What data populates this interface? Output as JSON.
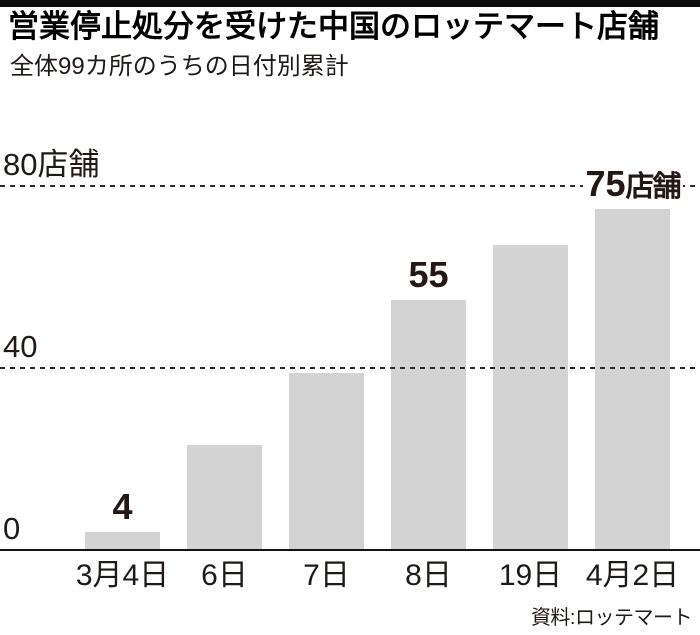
{
  "header": {
    "title": "営業停止処分を受けた中国のロッテマート店舗",
    "subtitle": "全体99カ所のうちの日付別累計"
  },
  "source": "資料:ロッテマート",
  "colors": {
    "bar": "#d3d3d4",
    "text": "#1f1a17",
    "accent_band": "#0d0d0d",
    "gridline": "#2e2a28"
  },
  "chart_data": {
    "type": "bar",
    "title": "営業停止処分を受けた中国のロッテマート店舗",
    "subtitle": "全体99カ所のうちの日付別累計",
    "unit": "店舗",
    "categories": [
      "3月4日",
      "6日",
      "7日",
      "8日",
      "19日",
      "4月2日"
    ],
    "values": [
      4,
      23,
      39,
      55,
      67,
      75
    ],
    "value_labels": [
      {
        "index": 0,
        "text": "4",
        "suffix": ""
      },
      {
        "index": 3,
        "text": "55",
        "suffix": ""
      },
      {
        "index": 5,
        "text": "75",
        "suffix": "店舗"
      }
    ],
    "y_ticks": [
      {
        "value": 0,
        "label": "0"
      },
      {
        "value": 40,
        "label": "40"
      },
      {
        "value": 80,
        "label": "80店舗"
      }
    ],
    "ylim": [
      0,
      88
    ],
    "grid": "horizontal-dashed",
    "legend": "none",
    "source": "資料:ロッテマート"
  }
}
